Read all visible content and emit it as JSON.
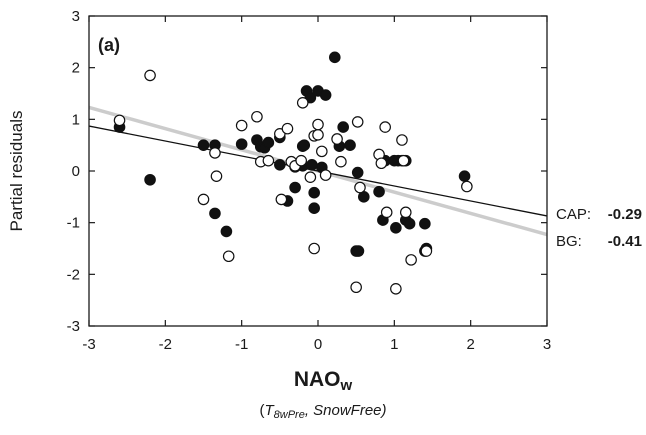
{
  "chart_data": {
    "type": "scatter",
    "panel_label": "(a)",
    "ylabel": "Partial residuals",
    "xlabel": {
      "main": "NAO",
      "main_subscript": "w",
      "sub_open": "(",
      "sub_T": "T",
      "sub_T_subscript": "8wPre",
      "sub_rest": ", SnowFree)"
    },
    "xlim": [
      -3,
      3
    ],
    "ylim": [
      -3,
      3
    ],
    "xticks": [
      -3,
      -2,
      -1,
      0,
      1,
      2,
      3
    ],
    "yticks": [
      -3,
      -2,
      -1,
      0,
      1,
      2,
      3
    ],
    "grid": false,
    "series": [
      {
        "name": "CAP",
        "marker": "filled-circle",
        "color": "#111111",
        "points": [
          [
            -2.6,
            0.85
          ],
          [
            -2.2,
            -0.17
          ],
          [
            -1.5,
            0.5
          ],
          [
            -1.35,
            0.5
          ],
          [
            -1.35,
            -0.82
          ],
          [
            -1.2,
            -1.17
          ],
          [
            -1.0,
            0.52
          ],
          [
            -0.8,
            0.6
          ],
          [
            -0.75,
            0.47
          ],
          [
            -0.7,
            0.45
          ],
          [
            -0.65,
            0.55
          ],
          [
            -0.5,
            0.65
          ],
          [
            -0.5,
            0.12
          ],
          [
            -0.4,
            -0.58
          ],
          [
            -0.3,
            0.08
          ],
          [
            -0.3,
            -0.32
          ],
          [
            -0.2,
            0.1
          ],
          [
            -0.2,
            0.48
          ],
          [
            -0.18,
            0.5
          ],
          [
            -0.15,
            1.55
          ],
          [
            -0.1,
            1.42
          ],
          [
            -0.08,
            0.12
          ],
          [
            -0.05,
            -0.42
          ],
          [
            -0.05,
            -0.72
          ],
          [
            0.0,
            1.55
          ],
          [
            0.05,
            0.07
          ],
          [
            0.1,
            1.47
          ],
          [
            0.22,
            2.2
          ],
          [
            0.28,
            0.48
          ],
          [
            0.33,
            0.85
          ],
          [
            0.42,
            0.5
          ],
          [
            0.5,
            -1.55
          ],
          [
            0.53,
            -1.55
          ],
          [
            0.52,
            -0.03
          ],
          [
            0.6,
            -0.5
          ],
          [
            0.8,
            -0.4
          ],
          [
            0.85,
            -0.95
          ],
          [
            0.88,
            0.2
          ],
          [
            1.0,
            0.2
          ],
          [
            1.02,
            -1.1
          ],
          [
            1.05,
            0.2
          ],
          [
            1.1,
            0.2
          ],
          [
            1.15,
            0.2
          ],
          [
            1.15,
            -0.95
          ],
          [
            1.2,
            -1.02
          ],
          [
            1.4,
            -1.02
          ],
          [
            1.4,
            -1.55
          ],
          [
            1.42,
            -1.5
          ],
          [
            1.92,
            -0.1
          ]
        ]
      },
      {
        "name": "BG",
        "marker": "open-circle",
        "color": "#111111",
        "points": [
          [
            -2.6,
            0.98
          ],
          [
            -2.2,
            1.85
          ],
          [
            -1.5,
            -0.55
          ],
          [
            -1.35,
            0.35
          ],
          [
            -1.33,
            -0.1
          ],
          [
            -1.17,
            -1.65
          ],
          [
            -1.0,
            0.88
          ],
          [
            -0.8,
            1.05
          ],
          [
            -0.75,
            0.18
          ],
          [
            -0.65,
            0.2
          ],
          [
            -0.5,
            0.72
          ],
          [
            -0.48,
            -0.55
          ],
          [
            -0.4,
            0.82
          ],
          [
            -0.35,
            0.18
          ],
          [
            -0.3,
            0.1
          ],
          [
            -0.22,
            0.2
          ],
          [
            -0.2,
            1.32
          ],
          [
            -0.1,
            -0.12
          ],
          [
            -0.05,
            0.68
          ],
          [
            -0.05,
            -1.5
          ],
          [
            0.0,
            0.7
          ],
          [
            0.0,
            0.9
          ],
          [
            0.05,
            0.38
          ],
          [
            0.1,
            -0.08
          ],
          [
            0.25,
            0.62
          ],
          [
            0.3,
            0.18
          ],
          [
            0.5,
            -2.25
          ],
          [
            0.52,
            0.95
          ],
          [
            0.55,
            -0.32
          ],
          [
            0.8,
            0.32
          ],
          [
            0.83,
            0.15
          ],
          [
            0.88,
            0.85
          ],
          [
            0.9,
            -0.8
          ],
          [
            1.02,
            -2.28
          ],
          [
            1.1,
            0.6
          ],
          [
            1.12,
            0.2
          ],
          [
            1.15,
            -0.8
          ],
          [
            1.22,
            -1.72
          ],
          [
            1.42,
            -1.55
          ],
          [
            1.95,
            -0.3
          ]
        ]
      }
    ],
    "fit_lines": [
      {
        "series": "CAP",
        "slope": -0.29,
        "intercept": 0.0,
        "color": "#111111",
        "label_name": "CAP:",
        "label_value": "-0.29"
      },
      {
        "series": "BG",
        "slope": -0.41,
        "intercept": 0.0,
        "color": "#cccccc",
        "label_name": "BG:",
        "label_value": "-0.41"
      }
    ]
  }
}
